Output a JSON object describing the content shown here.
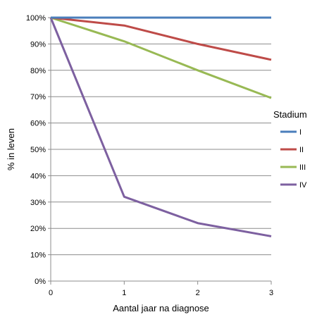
{
  "chart_data": {
    "type": "line",
    "xlabel": "Aantal jaar na diagnose",
    "ylabel": "% in leven",
    "x": [
      0,
      1,
      2,
      3
    ],
    "xlim": [
      0,
      3
    ],
    "ylim": [
      0,
      100
    ],
    "y_ticks": [
      "0%",
      "10%",
      "20%",
      "30%",
      "40%",
      "50%",
      "60%",
      "70%",
      "80%",
      "90%",
      "100%"
    ],
    "x_ticks": [
      "0",
      "1",
      "2",
      "3"
    ],
    "grid": "horizontal",
    "legend": {
      "title": "Stadium",
      "placement": "right"
    },
    "series": [
      {
        "name": "I",
        "color": "#4a7ebb",
        "values": [
          100,
          100,
          100,
          100
        ]
      },
      {
        "name": "II",
        "color": "#be4b48",
        "values": [
          100,
          97,
          90,
          84
        ]
      },
      {
        "name": "III",
        "color": "#98b954",
        "values": [
          100,
          91,
          80,
          69.5
        ]
      },
      {
        "name": "IV",
        "color": "#7d60a0",
        "values": [
          100,
          32,
          22,
          17
        ]
      }
    ]
  }
}
